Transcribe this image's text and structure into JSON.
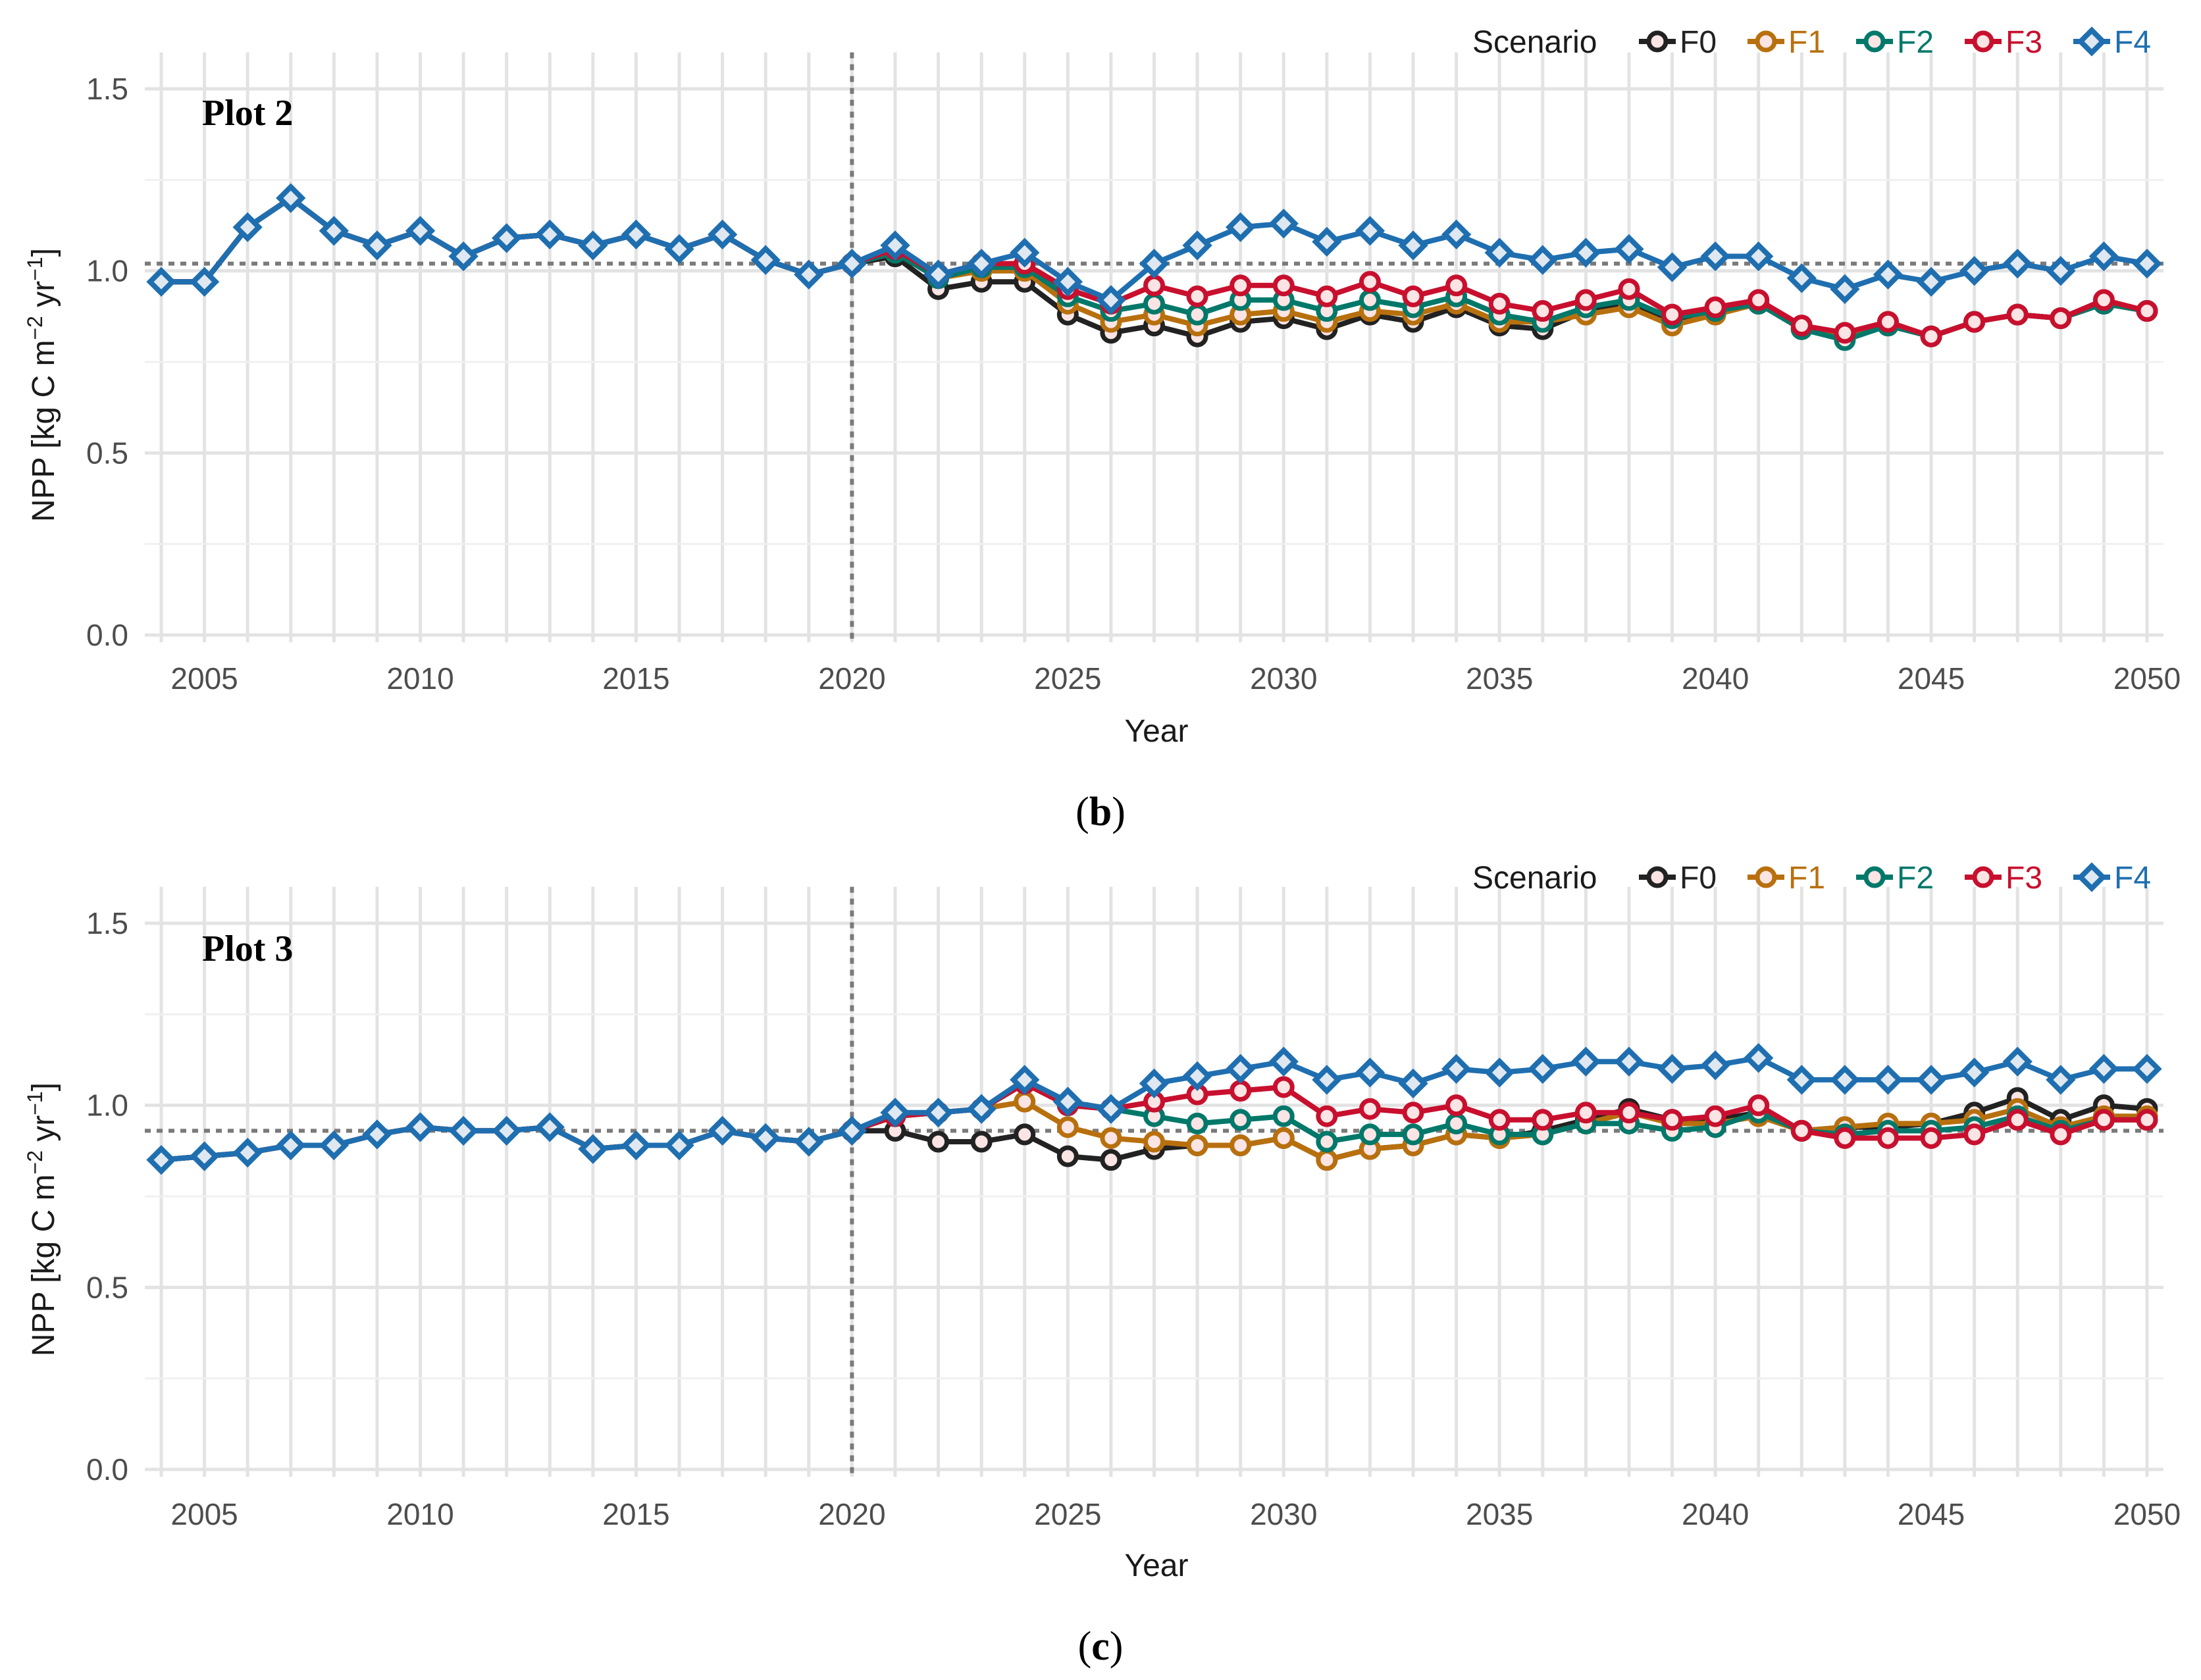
{
  "colors": {
    "F0": "#222222",
    "F1": "#b8700e",
    "F2": "#00786a",
    "F3": "#c8102e",
    "F4": "#1f6fb0"
  },
  "chart_data": [
    {
      "type": "line",
      "plot_label": "Plot 2",
      "caption_open": "(",
      "caption_letter": "b",
      "caption_close": ")",
      "xlabel": "Year",
      "ylabel_main": "NPP [kg C m",
      "ylabel_sup1": "−2",
      "ylabel_mid": " yr",
      "ylabel_sup2": "−1",
      "ylabel_end": "]",
      "xlim": [
        2004,
        2050
      ],
      "ylim": [
        0.0,
        1.5
      ],
      "x_ticks": [
        "2005",
        "2010",
        "2015",
        "2020",
        "2025",
        "2030",
        "2035",
        "2040",
        "2045",
        "2050"
      ],
      "y_ticks": [
        "0.0",
        "0.5",
        "1.0",
        "1.5"
      ],
      "vline_x": 2020,
      "hline_y": 1.02,
      "legend_title": "Scenario",
      "legend_position": "top-right",
      "x": [
        2004,
        2005,
        2006,
        2007,
        2008,
        2009,
        2010,
        2011,
        2012,
        2013,
        2014,
        2015,
        2016,
        2017,
        2018,
        2019,
        2020,
        2021,
        2022,
        2023,
        2024,
        2025,
        2026,
        2027,
        2028,
        2029,
        2030,
        2031,
        2032,
        2033,
        2034,
        2035,
        2036,
        2037,
        2038,
        2039,
        2040,
        2041,
        2042,
        2043,
        2044,
        2045,
        2046,
        2047,
        2048,
        2049,
        2050
      ],
      "series": [
        {
          "name": "F0",
          "values": [
            0.97,
            0.97,
            1.12,
            1.2,
            1.11,
            1.07,
            1.11,
            1.04,
            1.09,
            1.1,
            1.07,
            1.1,
            1.06,
            1.1,
            1.03,
            0.99,
            1.02,
            1.04,
            0.95,
            0.97,
            0.97,
            0.88,
            0.83,
            0.85,
            0.82,
            0.86,
            0.87,
            0.84,
            0.88,
            0.86,
            0.9,
            0.85,
            0.84,
            0.89,
            0.91,
            0.86,
            0.89,
            0.91,
            0.84,
            0.82,
            0.85,
            0.82,
            0.86,
            0.88,
            0.87,
            0.91,
            0.89
          ]
        },
        {
          "name": "F1",
          "values": [
            0.97,
            0.97,
            1.12,
            1.2,
            1.11,
            1.07,
            1.11,
            1.04,
            1.09,
            1.1,
            1.07,
            1.1,
            1.06,
            1.1,
            1.03,
            0.99,
            1.02,
            1.05,
            0.98,
            1.0,
            1.0,
            0.91,
            0.86,
            0.88,
            0.85,
            0.88,
            0.89,
            0.86,
            0.89,
            0.88,
            0.91,
            0.86,
            0.86,
            0.88,
            0.9,
            0.85,
            0.88,
            0.91,
            0.84,
            0.82,
            0.86,
            0.82,
            0.86,
            0.88,
            0.87,
            0.91,
            0.89
          ]
        },
        {
          "name": "F2",
          "values": [
            0.97,
            0.97,
            1.12,
            1.2,
            1.11,
            1.07,
            1.11,
            1.04,
            1.09,
            1.1,
            1.07,
            1.1,
            1.06,
            1.1,
            1.03,
            0.99,
            1.02,
            1.05,
            0.98,
            1.01,
            1.01,
            0.93,
            0.89,
            0.91,
            0.88,
            0.92,
            0.92,
            0.89,
            0.92,
            0.9,
            0.93,
            0.88,
            0.86,
            0.9,
            0.92,
            0.87,
            0.89,
            0.91,
            0.84,
            0.81,
            0.85,
            0.82,
            0.86,
            0.88,
            0.87,
            0.91,
            0.89
          ]
        },
        {
          "name": "F3",
          "values": [
            0.97,
            0.97,
            1.12,
            1.2,
            1.11,
            1.07,
            1.11,
            1.04,
            1.09,
            1.1,
            1.07,
            1.1,
            1.06,
            1.1,
            1.03,
            0.99,
            1.02,
            1.06,
            0.99,
            1.02,
            1.02,
            0.95,
            0.91,
            0.96,
            0.93,
            0.96,
            0.96,
            0.93,
            0.97,
            0.93,
            0.96,
            0.91,
            0.89,
            0.92,
            0.95,
            0.88,
            0.9,
            0.92,
            0.85,
            0.83,
            0.86,
            0.82,
            0.86,
            0.88,
            0.87,
            0.92,
            0.89
          ]
        },
        {
          "name": "F4",
          "values": [
            0.97,
            0.97,
            1.12,
            1.2,
            1.11,
            1.07,
            1.11,
            1.04,
            1.09,
            1.1,
            1.07,
            1.1,
            1.06,
            1.1,
            1.03,
            0.99,
            1.02,
            1.07,
            0.99,
            1.02,
            1.05,
            0.97,
            0.92,
            1.02,
            1.07,
            1.12,
            1.13,
            1.08,
            1.11,
            1.07,
            1.1,
            1.05,
            1.03,
            1.05,
            1.06,
            1.01,
            1.04,
            1.04,
            0.98,
            0.95,
            0.99,
            0.97,
            1.0,
            1.02,
            1.0,
            1.04,
            1.02
          ]
        }
      ]
    },
    {
      "type": "line",
      "plot_label": "Plot 3",
      "caption_open": "(",
      "caption_letter": "c",
      "caption_close": ")",
      "xlabel": "Year",
      "ylabel_main": "NPP [kg C m",
      "ylabel_sup1": "−2",
      "ylabel_mid": " yr",
      "ylabel_sup2": "−1",
      "ylabel_end": "]",
      "xlim": [
        2004,
        2050
      ],
      "ylim": [
        0.0,
        1.5
      ],
      "x_ticks": [
        "2005",
        "2010",
        "2015",
        "2020",
        "2025",
        "2030",
        "2035",
        "2040",
        "2045",
        "2050"
      ],
      "y_ticks": [
        "0.0",
        "0.5",
        "1.0",
        "1.5"
      ],
      "vline_x": 2020,
      "hline_y": 0.93,
      "legend_title": "Scenario",
      "legend_position": "top-right",
      "x": [
        2004,
        2005,
        2006,
        2007,
        2008,
        2009,
        2010,
        2011,
        2012,
        2013,
        2014,
        2015,
        2016,
        2017,
        2018,
        2019,
        2020,
        2021,
        2022,
        2023,
        2024,
        2025,
        2026,
        2027,
        2028,
        2029,
        2030,
        2031,
        2032,
        2033,
        2034,
        2035,
        2036,
        2037,
        2038,
        2039,
        2040,
        2041,
        2042,
        2043,
        2044,
        2045,
        2046,
        2047,
        2048,
        2049,
        2050
      ],
      "series": [
        {
          "name": "F0",
          "values": [
            0.85,
            0.86,
            0.87,
            0.89,
            0.89,
            0.92,
            0.94,
            0.93,
            0.93,
            0.94,
            0.88,
            0.89,
            0.89,
            0.93,
            0.91,
            0.9,
            0.93,
            0.93,
            0.9,
            0.9,
            0.92,
            0.86,
            0.85,
            0.88,
            0.89,
            0.89,
            0.91,
            0.85,
            0.88,
            0.89,
            0.92,
            0.91,
            0.93,
            0.96,
            0.99,
            0.96,
            0.96,
            0.98,
            0.93,
            0.94,
            0.94,
            0.95,
            0.98,
            1.02,
            0.96,
            1.0,
            0.99
          ]
        },
        {
          "name": "F1",
          "values": [
            0.85,
            0.86,
            0.87,
            0.89,
            0.89,
            0.92,
            0.94,
            0.93,
            0.93,
            0.94,
            0.88,
            0.89,
            0.89,
            0.93,
            0.91,
            0.9,
            0.93,
            0.97,
            0.98,
            0.99,
            1.01,
            0.94,
            0.91,
            0.9,
            0.89,
            0.89,
            0.91,
            0.85,
            0.88,
            0.89,
            0.92,
            0.91,
            0.92,
            0.95,
            0.98,
            0.95,
            0.95,
            0.97,
            0.93,
            0.94,
            0.95,
            0.95,
            0.96,
            0.99,
            0.94,
            0.97,
            0.97
          ]
        },
        {
          "name": "F2",
          "values": [
            0.85,
            0.86,
            0.87,
            0.89,
            0.89,
            0.92,
            0.94,
            0.93,
            0.93,
            0.94,
            0.88,
            0.89,
            0.89,
            0.93,
            0.91,
            0.9,
            0.93,
            0.97,
            0.98,
            0.99,
            1.06,
            1.0,
            0.99,
            0.97,
            0.95,
            0.96,
            0.97,
            0.9,
            0.92,
            0.92,
            0.95,
            0.92,
            0.92,
            0.95,
            0.95,
            0.93,
            0.94,
            0.98,
            0.93,
            0.92,
            0.93,
            0.93,
            0.94,
            0.97,
            0.93,
            0.96,
            0.96
          ]
        },
        {
          "name": "F3",
          "values": [
            0.85,
            0.86,
            0.87,
            0.89,
            0.89,
            0.92,
            0.94,
            0.93,
            0.93,
            0.94,
            0.88,
            0.89,
            0.89,
            0.93,
            0.91,
            0.9,
            0.93,
            0.97,
            0.98,
            0.99,
            1.06,
            1.0,
            0.99,
            1.01,
            1.03,
            1.04,
            1.05,
            0.97,
            0.99,
            0.98,
            1.0,
            0.96,
            0.96,
            0.98,
            0.98,
            0.96,
            0.97,
            1.0,
            0.93,
            0.91,
            0.91,
            0.91,
            0.92,
            0.96,
            0.92,
            0.96,
            0.96
          ]
        },
        {
          "name": "F4",
          "values": [
            0.85,
            0.86,
            0.87,
            0.89,
            0.89,
            0.92,
            0.94,
            0.93,
            0.93,
            0.94,
            0.88,
            0.89,
            0.89,
            0.93,
            0.91,
            0.9,
            0.93,
            0.98,
            0.98,
            0.99,
            1.07,
            1.01,
            0.99,
            1.06,
            1.08,
            1.1,
            1.12,
            1.07,
            1.09,
            1.06,
            1.1,
            1.09,
            1.1,
            1.12,
            1.12,
            1.1,
            1.11,
            1.13,
            1.07,
            1.07,
            1.07,
            1.07,
            1.09,
            1.12,
            1.07,
            1.1,
            1.1
          ]
        }
      ]
    }
  ]
}
